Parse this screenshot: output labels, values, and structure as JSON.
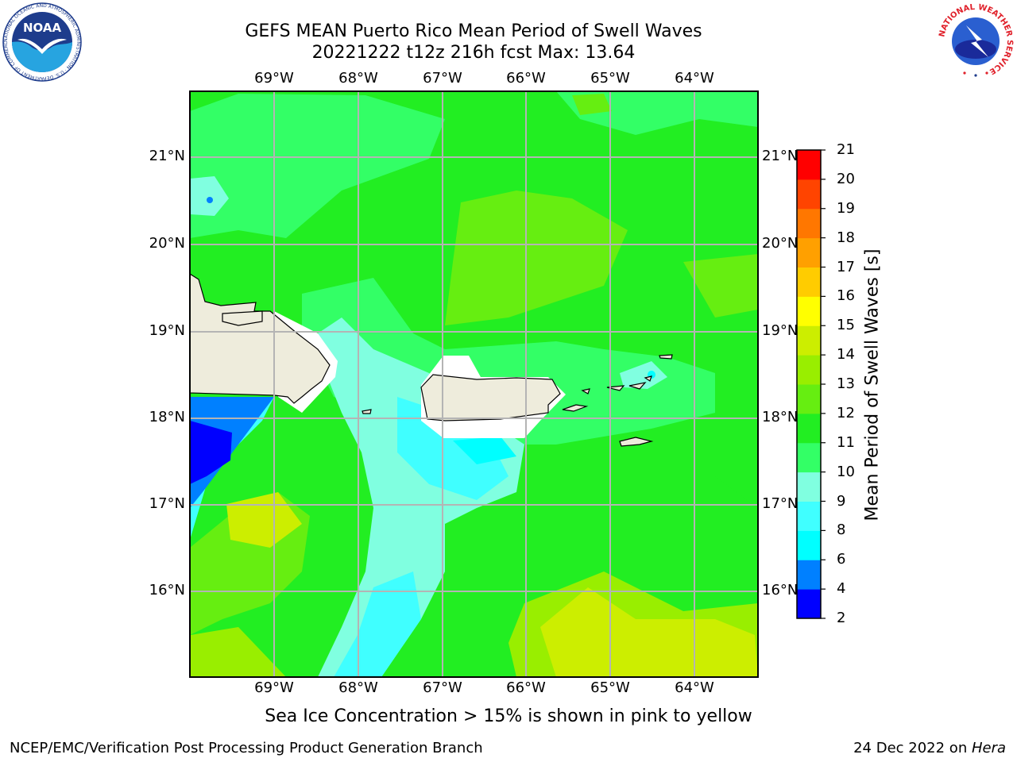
{
  "header": {
    "title_line1": "GEFS MEAN Puerto Rico Mean Period of Swell Waves",
    "title_line2": "20221222 t12z 216h fcst   Max: 13.64"
  },
  "logos": {
    "noaa": "NOAA",
    "noaa_ring_text": "NATIONAL OCEANIC AND ATMOSPHERIC ADMINISTRATION · U.S. DEPARTMENT OF COMMERCE",
    "nws_ring_text": "NATIONAL WEATHER SERVICE"
  },
  "map": {
    "lon_ticks": [
      "69°W",
      "68°W",
      "67°W",
      "66°W",
      "65°W",
      "64°W"
    ],
    "lat_ticks": [
      "21°N",
      "20°N",
      "19°N",
      "18°N",
      "17°N",
      "16°N"
    ],
    "colors": {
      "ocean_green": "#33ff33",
      "land": "#eeecdc",
      "grid": "#b4b4b4"
    }
  },
  "colorbar": {
    "title": "Mean Period of Swell Waves [s]",
    "levels": [
      "2",
      "4",
      "6",
      "8",
      "9",
      "10",
      "11",
      "12",
      "13",
      "14",
      "15",
      "16",
      "17",
      "18",
      "19",
      "20",
      "21"
    ],
    "colors": [
      "#0000ff",
      "#0080ff",
      "#00ffff",
      "#40ffff",
      "#80ffe0",
      "#33ff66",
      "#22ee22",
      "#66ee11",
      "#99ee00",
      "#ccee00",
      "#ffff00",
      "#ffcc00",
      "#ffa000",
      "#ff7700",
      "#ff4400",
      "#ff0000"
    ]
  },
  "footer": {
    "note": "Sea Ice Concentration > 15% is shown in pink to yellow",
    "credit_left": "NCEP/EMC/Verification Post Processing Product Generation Branch",
    "credit_date": "24 Dec 2022 on ",
    "credit_host": "Hera"
  }
}
